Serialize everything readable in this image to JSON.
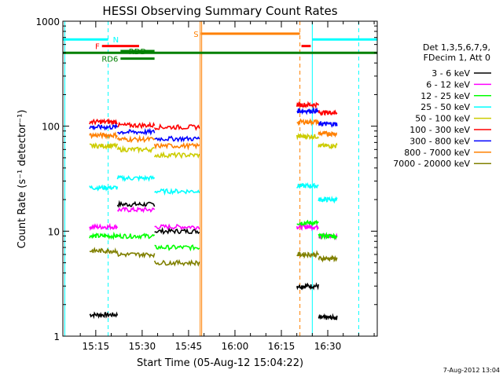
{
  "chart_data": {
    "type": "line",
    "title": "HESSI Observing Summary Count Rates",
    "xlabel": "Start Time (05-Aug-12 15:04:22)",
    "ylabel": "Count Rate (s⁻¹ detector⁻¹)",
    "y_scale": "log",
    "xlim": [
      "15:04:22",
      "16:46:00"
    ],
    "ylim": [
      1,
      1000
    ],
    "x_ticks": [
      "15:15",
      "15:30",
      "15:45",
      "16:00",
      "16:15",
      "16:30"
    ],
    "y_ticks": [
      "1",
      "10",
      "100",
      "1000"
    ],
    "legend_header": [
      "Det 1,3,5,6,7,9,",
      "FDecim 1, Att 0"
    ],
    "legend_position": "right",
    "footer_text": "7-Aug-2012 13:04",
    "bands": [
      {
        "label": "3 - 6 keV",
        "color": "#000000"
      },
      {
        "label": "6 - 12 keV",
        "color": "#ff00ff"
      },
      {
        "label": "12 - 25 keV",
        "color": "#00ff00"
      },
      {
        "label": "25 - 50 keV",
        "color": "#00ffff"
      },
      {
        "label": "50 - 100 keV",
        "color": "#cccc00"
      },
      {
        "label": "100 - 300 keV",
        "color": "#ff0000"
      },
      {
        "label": "300 - 800 keV",
        "color": "#0000ff"
      },
      {
        "label": "800 - 7000 keV",
        "color": "#ff8000"
      },
      {
        "label": "7000 - 20000 keV",
        "color": "#808000"
      }
    ],
    "segments": [
      {
        "start": "15:13:00",
        "end": "15:22:00",
        "values": {
          "100 - 300 keV": 110,
          "300 - 800 keV": 98,
          "800 - 7000 keV": 82,
          "50 - 100 keV": 65,
          "25 - 50 keV": 26,
          "6 - 12 keV": 11,
          "12 - 25 keV": 9,
          "7000 - 20000 keV": 6.5,
          "3 - 6 keV": 1.6
        }
      },
      {
        "start": "15:22:00",
        "end": "15:34:00",
        "values": {
          "100 - 300 keV": 102,
          "300 - 800 keV": 88,
          "800 - 7000 keV": 75,
          "50 - 100 keV": 60,
          "25 - 50 keV": 32,
          "6 - 12 keV": 16,
          "12 - 25 keV": 9,
          "7000 - 20000 keV": 6,
          "3 - 6 keV": 18
        }
      },
      {
        "start": "15:34:00",
        "end": "15:48:30",
        "values": {
          "100 - 300 keV": 98,
          "300 - 800 keV": 76,
          "800 - 7000 keV": 65,
          "50 - 100 keV": 53,
          "25 - 50 keV": 24,
          "6 - 12 keV": 11,
          "12 - 25 keV": 7,
          "7000 - 20000 keV": 5,
          "3 - 6 keV": 10
        }
      },
      {
        "start": "16:20:00",
        "end": "16:27:00",
        "values": {
          "100 - 300 keV": 160,
          "300 - 800 keV": 140,
          "800 - 7000 keV": 110,
          "50 - 100 keV": 80,
          "25 - 50 keV": 27,
          "6 - 12 keV": 11,
          "12 - 25 keV": 12,
          "7000 - 20000 keV": 6,
          "3 - 6 keV": 3
        }
      },
      {
        "start": "16:27:00",
        "end": "16:33:00",
        "values": {
          "100 - 300 keV": 135,
          "300 - 800 keV": 105,
          "800 - 7000 keV": 85,
          "50 - 100 keV": 65,
          "25 - 50 keV": 20,
          "6 - 12 keV": 9,
          "12 - 25 keV": 9,
          "7000 - 20000 keV": 5.5,
          "3 - 6 keV": 1.5
        }
      }
    ],
    "flag_bars": [
      {
        "label": "N",
        "color": "#00ffff",
        "value": 670,
        "ranges": [
          [
            "15:04:22",
            "15:19:00"
          ],
          [
            "16:25:00",
            "16:46:00"
          ]
        ]
      },
      {
        "label": "F",
        "color": "#ff0000",
        "value": 580,
        "ranges": [
          [
            "15:17:00",
            "15:29:00"
          ],
          [
            "16:21:30",
            "16:24:30"
          ]
        ]
      },
      {
        "label": "S",
        "color": "#ff8000",
        "value": 760,
        "ranges": [
          [
            "15:49:00",
            "16:21:00"
          ]
        ]
      },
      {
        "label": "RDD",
        "color": "#008000",
        "value": 520,
        "ranges": [
          [
            "15:23:00",
            "15:34:00"
          ]
        ]
      },
      {
        "label": "RD6",
        "color": "#008000",
        "value": 440,
        "ranges": [
          [
            "15:23:00",
            "15:34:00"
          ]
        ]
      },
      {
        "label": "",
        "color": "#008000",
        "value": 500,
        "ranges": [
          [
            "15:04:22",
            "16:46:00"
          ]
        ]
      }
    ],
    "vertical_lines": [
      {
        "time": "15:05:00",
        "color": "#00ffff",
        "style": "solid"
      },
      {
        "time": "15:19:00",
        "color": "#00ffff",
        "style": "dashed"
      },
      {
        "time": "15:48:45",
        "color": "#ff8000",
        "style": "solid"
      },
      {
        "time": "15:49:15",
        "color": "#ff8000",
        "style": "solid"
      },
      {
        "time": "16:21:00",
        "color": "#ff8000",
        "style": "dashed"
      },
      {
        "time": "16:25:00",
        "color": "#00ffff",
        "style": "solid"
      },
      {
        "time": "16:40:00",
        "color": "#00ffff",
        "style": "dashed"
      }
    ],
    "grid": false
  }
}
